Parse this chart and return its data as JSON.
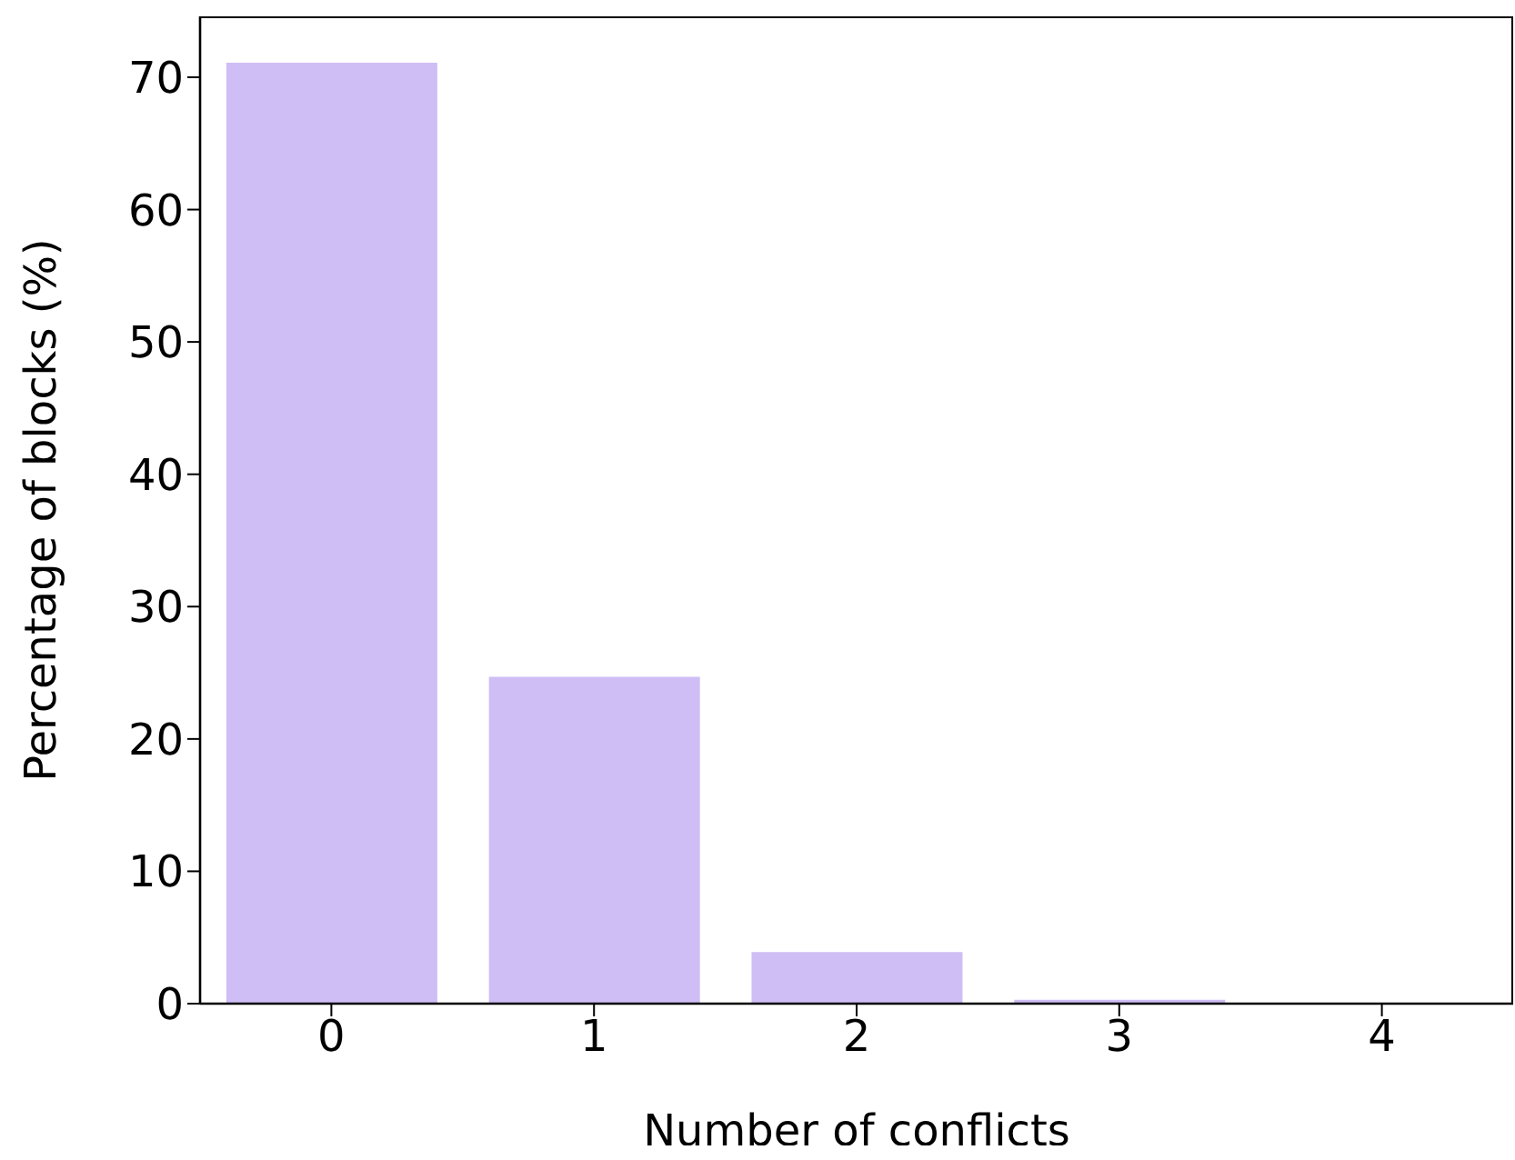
{
  "chart_data": {
    "type": "bar",
    "xlabel": "Number of conflicts",
    "ylabel": "Percentage of blocks (%)",
    "categories": [
      "0",
      "1",
      "2",
      "3",
      "4"
    ],
    "values": [
      71.1,
      24.7,
      3.9,
      0.3,
      0
    ],
    "color": "#cfbdf5",
    "ylim": [
      0,
      74.6
    ],
    "yticks": [
      0,
      10,
      20,
      30,
      40,
      50,
      60,
      70
    ],
    "grid": false,
    "legend": false
  }
}
